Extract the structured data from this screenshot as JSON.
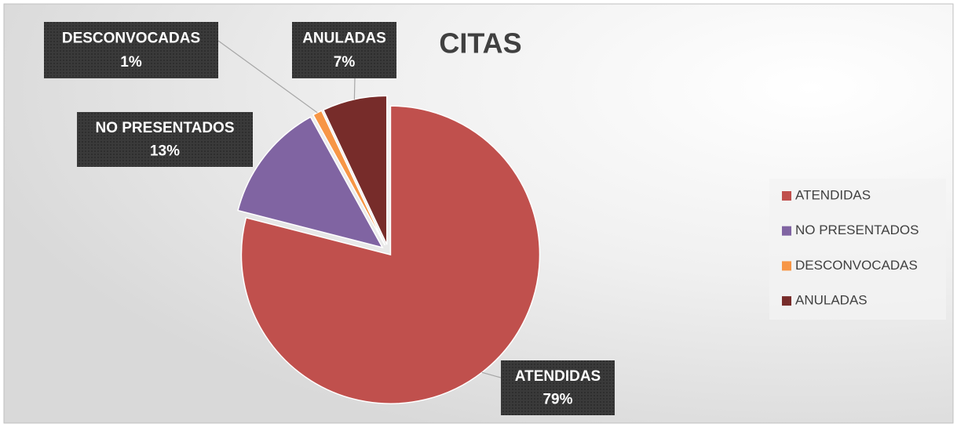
{
  "chart_data": {
    "type": "pie",
    "title": "CITAS",
    "categories": [
      "ATENDIDAS",
      "NO PRESENTADOS",
      "DESCONVOCADAS",
      "ANULADAS"
    ],
    "values": [
      79,
      13,
      1,
      7
    ],
    "value_labels": [
      "79%",
      "13%",
      "1%",
      "7%"
    ],
    "colors": [
      "#c0504d",
      "#8064a2",
      "#f79646",
      "#772c2a"
    ],
    "legend": "right"
  }
}
